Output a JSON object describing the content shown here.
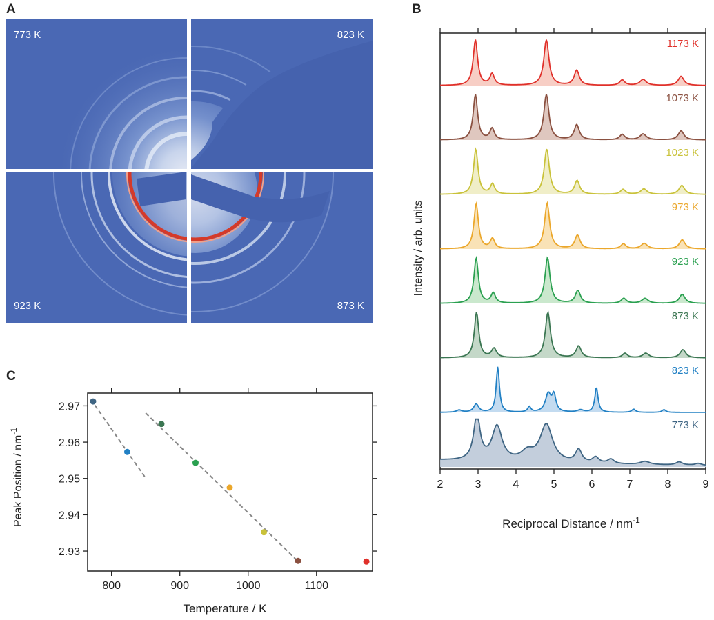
{
  "panel_labels": {
    "a": "A",
    "b": "B",
    "c": "C"
  },
  "panelA": {
    "quadrant_labels": [
      "773 K",
      "823 K",
      "923 K",
      "873 K"
    ],
    "background_color": "#4a68b4"
  },
  "chart_data": [
    {
      "id": "B",
      "type": "line",
      "xlabel": "Reciprocal Distance / nm",
      "xlabel_sup": "-1",
      "ylabel": "Intensity / arb. units",
      "xlim": [
        2,
        9
      ],
      "xticks": [
        2,
        3,
        4,
        5,
        6,
        7,
        8,
        9
      ],
      "grid": false,
      "stacked_offsets": true,
      "series": [
        {
          "name": "1173 K",
          "color": "#e0302a",
          "fill": "#f6c9bf",
          "peaks": [
            [
              2.93,
              1.0,
              0.07
            ],
            [
              3.37,
              0.25,
              0.07
            ],
            [
              4.8,
              1.0,
              0.08
            ],
            [
              5.6,
              0.33,
              0.08
            ],
            [
              6.8,
              0.12,
              0.08
            ],
            [
              7.35,
              0.13,
              0.1
            ],
            [
              8.35,
              0.2,
              0.09
            ]
          ]
        },
        {
          "name": "1073 K",
          "color": "#8a5040",
          "fill": "#dcc1b8",
          "peaks": [
            [
              2.93,
              1.0,
              0.07
            ],
            [
              3.37,
              0.25,
              0.07
            ],
            [
              4.8,
              1.0,
              0.08
            ],
            [
              5.6,
              0.33,
              0.08
            ],
            [
              6.8,
              0.12,
              0.08
            ],
            [
              7.35,
              0.13,
              0.1
            ],
            [
              8.35,
              0.2,
              0.09
            ]
          ]
        },
        {
          "name": "1023 K",
          "color": "#c9c23a",
          "fill": "#eeecc2",
          "peaks": [
            [
              2.94,
              1.0,
              0.07
            ],
            [
              3.38,
              0.22,
              0.07
            ],
            [
              4.81,
              1.0,
              0.08
            ],
            [
              5.61,
              0.3,
              0.08
            ],
            [
              6.82,
              0.11,
              0.08
            ],
            [
              7.37,
              0.12,
              0.1
            ],
            [
              8.37,
              0.2,
              0.09
            ]
          ]
        },
        {
          "name": "973 K",
          "color": "#eba72b",
          "fill": "#f8dfae",
          "peaks": [
            [
              2.95,
              1.0,
              0.07
            ],
            [
              3.38,
              0.22,
              0.07
            ],
            [
              4.82,
              1.0,
              0.08
            ],
            [
              5.62,
              0.3,
              0.08
            ],
            [
              6.83,
              0.11,
              0.08
            ],
            [
              7.38,
              0.12,
              0.1
            ],
            [
              8.38,
              0.2,
              0.09
            ]
          ]
        },
        {
          "name": "923 K",
          "color": "#2aa050",
          "fill": "#c4e6c8",
          "peaks": [
            [
              2.95,
              1.0,
              0.07
            ],
            [
              3.4,
              0.22,
              0.07
            ],
            [
              4.83,
              1.0,
              0.08
            ],
            [
              5.63,
              0.28,
              0.08
            ],
            [
              6.84,
              0.11,
              0.08
            ],
            [
              7.4,
              0.11,
              0.1
            ],
            [
              8.38,
              0.2,
              0.09
            ]
          ]
        },
        {
          "name": "873 K",
          "color": "#3b7652",
          "fill": "#bed4c2",
          "peaks": [
            [
              2.96,
              1.0,
              0.07
            ],
            [
              3.42,
              0.2,
              0.08
            ],
            [
              4.84,
              1.0,
              0.08
            ],
            [
              5.65,
              0.26,
              0.08
            ],
            [
              6.87,
              0.1,
              0.08
            ],
            [
              7.42,
              0.1,
              0.1
            ],
            [
              8.4,
              0.18,
              0.09
            ]
          ]
        },
        {
          "name": "823 K",
          "color": "#2180c4",
          "fill": "#bcd7ee",
          "peaks": [
            [
              2.5,
              0.05,
              0.08
            ],
            [
              2.95,
              0.18,
              0.08
            ],
            [
              3.52,
              1.0,
              0.05
            ],
            [
              4.35,
              0.12,
              0.05
            ],
            [
              4.85,
              0.4,
              0.09
            ],
            [
              5.0,
              0.35,
              0.06
            ],
            [
              5.7,
              0.05,
              0.1
            ],
            [
              6.12,
              0.55,
              0.05
            ],
            [
              7.1,
              0.07,
              0.06
            ],
            [
              7.9,
              0.06,
              0.06
            ]
          ]
        },
        {
          "name": "773 K",
          "color": "#3f6583",
          "fill": "#bcc9d8",
          "peaks": [
            [
              2.97,
              1.0,
              0.1
            ],
            [
              3.5,
              0.76,
              0.16
            ],
            [
              4.8,
              0.83,
              0.2
            ],
            [
              4.3,
              0.2,
              0.2
            ],
            [
              5.65,
              0.28,
              0.1
            ],
            [
              6.1,
              0.13,
              0.1
            ],
            [
              6.5,
              0.1,
              0.1
            ],
            [
              7.4,
              0.07,
              0.15
            ],
            [
              8.3,
              0.07,
              0.1
            ],
            [
              8.8,
              0.04,
              0.1
            ]
          ]
        }
      ]
    },
    {
      "id": "C",
      "type": "scatter",
      "xlabel": "Temperature / K",
      "ylabel": "Peak Position / nm",
      "ylabel_sup": "-1",
      "xlim": [
        765,
        1182
      ],
      "ylim": [
        2.9245,
        2.9735
      ],
      "xticks": [
        800,
        900,
        1000,
        1100
      ],
      "yticks": [
        2.93,
        2.94,
        2.95,
        2.96,
        2.97
      ],
      "grid": false,
      "points": [
        {
          "x": 773,
          "y": 2.9712,
          "color": "#3f6583"
        },
        {
          "x": 823,
          "y": 2.9573,
          "color": "#2180c4"
        },
        {
          "x": 873,
          "y": 2.965,
          "color": "#3b7652"
        },
        {
          "x": 923,
          "y": 2.9543,
          "color": "#2aa050"
        },
        {
          "x": 973,
          "y": 2.9475,
          "color": "#eba72b"
        },
        {
          "x": 1023,
          "y": 2.9352,
          "color": "#c9c23a"
        },
        {
          "x": 1073,
          "y": 2.9273,
          "color": "#8a5040"
        },
        {
          "x": 1173,
          "y": 2.9271,
          "color": "#e0302a"
        }
      ],
      "fit_lines": [
        {
          "x": [
            770,
            850
          ],
          "y": [
            2.9717,
            2.9501
          ],
          "color": "#888888"
        },
        {
          "x": [
            850,
            1075
          ],
          "y": [
            2.968,
            2.9268
          ],
          "color": "#888888"
        }
      ]
    }
  ]
}
